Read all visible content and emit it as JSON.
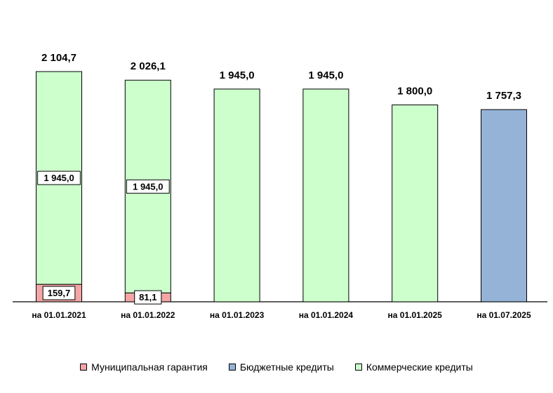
{
  "chart_data": {
    "type": "bar",
    "stacked": true,
    "categories": [
      "на 01.01.2021",
      "на 01.01.2022",
      "на 01.01.2023",
      "на 01.01.2024",
      "на 01.01.2025",
      "на 01.07.2025"
    ],
    "series": [
      {
        "name": "Муниципальная гарантия",
        "color": "#f4a6a6",
        "values": [
          159.7,
          81.1,
          0,
          0,
          0,
          0
        ],
        "labels": [
          "159,7",
          "81,1",
          "",
          "",
          "",
          ""
        ]
      },
      {
        "name": "Бюджетные кредиты",
        "color": "#95b3d7",
        "values": [
          0,
          0,
          0,
          0,
          0,
          1757.3
        ],
        "labels": [
          "",
          "",
          "",
          "",
          "",
          ""
        ]
      },
      {
        "name": "Коммерческие кредиты",
        "color": "#ccffcc",
        "values": [
          1945.0,
          1945.0,
          1945.0,
          1945.0,
          1800.0,
          0
        ],
        "labels": [
          "1 945,0",
          "1 945,0",
          "",
          "",
          "",
          ""
        ]
      }
    ],
    "totals": [
      2104.7,
      2026.1,
      1945.0,
      1945.0,
      1800.0,
      1757.3
    ],
    "total_labels": [
      "2 104,7",
      "2 026,1",
      "1 945,0",
      "1 945,0",
      "1 800,0",
      "1 757,3"
    ],
    "ylim": [
      0,
      2104.7
    ],
    "grid": false,
    "legend_position": "bottom"
  }
}
